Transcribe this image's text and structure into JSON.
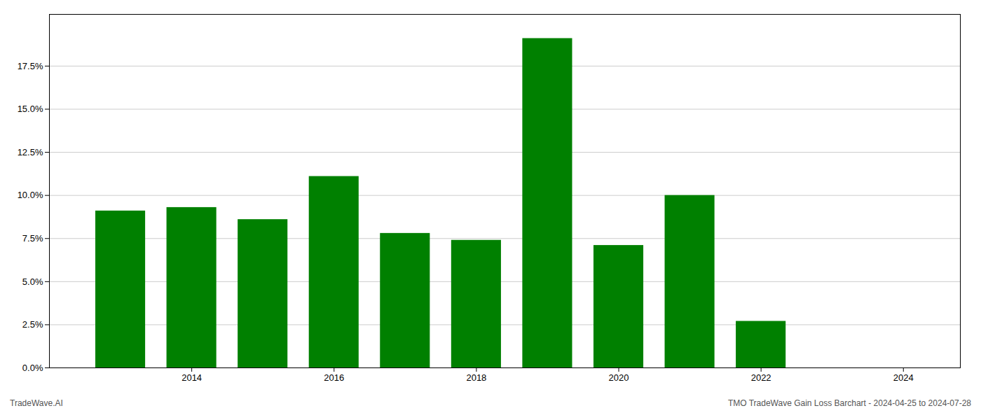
{
  "chart_data": {
    "type": "bar",
    "x": [
      2013,
      2014,
      2015,
      2016,
      2017,
      2018,
      2019,
      2020,
      2021,
      2022,
      2023
    ],
    "values": [
      0.091,
      0.093,
      0.086,
      0.111,
      0.078,
      0.074,
      0.191,
      0.071,
      0.1,
      0.027,
      0.0
    ],
    "color": "#008000",
    "xlim": [
      2012.0,
      2024.8
    ],
    "xticks": [
      2014,
      2016,
      2018,
      2020,
      2022,
      2024
    ],
    "ylim": [
      0.0,
      0.205
    ],
    "yticks": [
      {
        "value": 0.0,
        "label": "0.0%"
      },
      {
        "value": 0.025,
        "label": "2.5%"
      },
      {
        "value": 0.05,
        "label": "5.0%"
      },
      {
        "value": 0.075,
        "label": "7.5%"
      },
      {
        "value": 0.1,
        "label": "10.0%"
      },
      {
        "value": 0.125,
        "label": "12.5%"
      },
      {
        "value": 0.15,
        "label": "15.0%"
      },
      {
        "value": 0.175,
        "label": "17.5%"
      }
    ],
    "grid": true,
    "annotations": [
      "TradeWave.AI",
      "TMO TradeWave Gain Loss Barchart - 2024-04-25 to 2024-07-28"
    ]
  }
}
